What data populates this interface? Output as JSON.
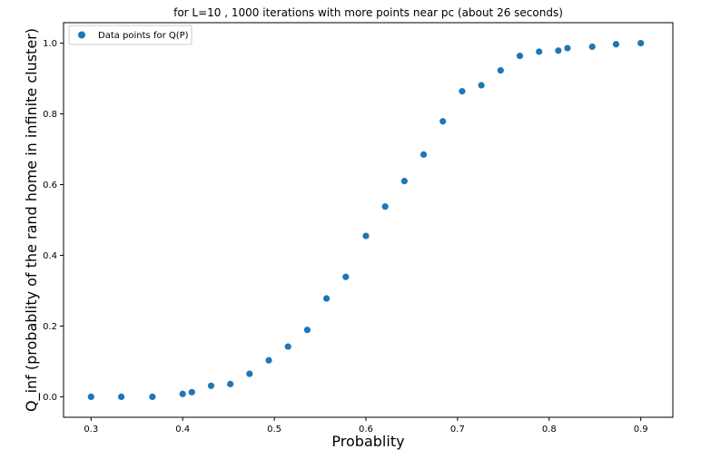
{
  "chart_data": {
    "type": "scatter",
    "title": "for L=10 , 1000 iterations with more points near pc (about 26 seconds)",
    "xlabel": "Probablity",
    "ylabel": "Q_inf (probablity of the rand home in infinite cluster)",
    "xlim": [
      0.27,
      0.935
    ],
    "ylim": [
      -0.058,
      1.058
    ],
    "xticks": [
      0.3,
      0.4,
      0.5,
      0.6,
      0.7,
      0.8,
      0.9
    ],
    "yticks": [
      0.0,
      0.2,
      0.4,
      0.6,
      0.8,
      1.0
    ],
    "xtick_labels": [
      "0.3",
      "0.4",
      "0.5",
      "0.6",
      "0.7",
      "0.8",
      "0.9"
    ],
    "ytick_labels": [
      "0.0",
      "0.2",
      "0.4",
      "0.6",
      "0.8",
      "1.0"
    ],
    "grid": false,
    "legend_position": "top-left",
    "series": [
      {
        "name": "Data points for Q(P)",
        "color": "#1f77b4",
        "x": [
          0.3,
          0.333,
          0.367,
          0.4,
          0.41,
          0.431,
          0.452,
          0.473,
          0.494,
          0.515,
          0.536,
          0.557,
          0.578,
          0.6,
          0.621,
          0.642,
          0.663,
          0.684,
          0.705,
          0.726,
          0.747,
          0.768,
          0.789,
          0.81,
          0.82,
          0.847,
          0.873,
          0.9
        ],
        "y": [
          0.0,
          0.0,
          0.0,
          0.008,
          0.013,
          0.031,
          0.036,
          0.065,
          0.103,
          0.142,
          0.189,
          0.278,
          0.339,
          0.455,
          0.538,
          0.61,
          0.685,
          0.779,
          0.864,
          0.881,
          0.923,
          0.964,
          0.976,
          0.979,
          0.986,
          0.99,
          0.997,
          1.0
        ]
      }
    ]
  }
}
